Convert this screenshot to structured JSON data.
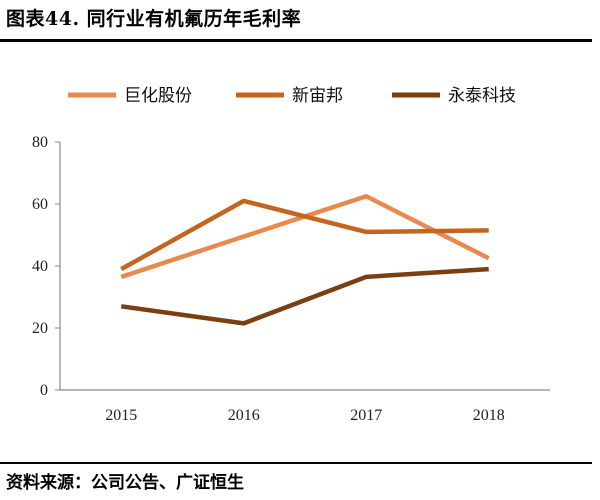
{
  "header": {
    "title": "图表44.   同行业有机氟历年毛利率"
  },
  "footer": {
    "source": "资料来源：公司公告、广证恒生"
  },
  "chart_data": {
    "type": "line",
    "x": [
      "2015",
      "2016",
      "2017",
      "2018"
    ],
    "series": [
      {
        "name": "巨化股份",
        "color": "#E88A4E",
        "values": [
          36.5,
          49.5,
          62.5,
          42.5
        ]
      },
      {
        "name": "新宙邦",
        "color": "#C4651F",
        "values": [
          39,
          61,
          51,
          51.5
        ]
      },
      {
        "name": "永泰科技",
        "color": "#7A3E12",
        "values": [
          27,
          21.5,
          36.5,
          39
        ]
      }
    ],
    "ylim": [
      0,
      80
    ],
    "yticks": [
      0,
      20,
      40,
      60,
      80
    ],
    "legend": "top",
    "grid": false
  }
}
